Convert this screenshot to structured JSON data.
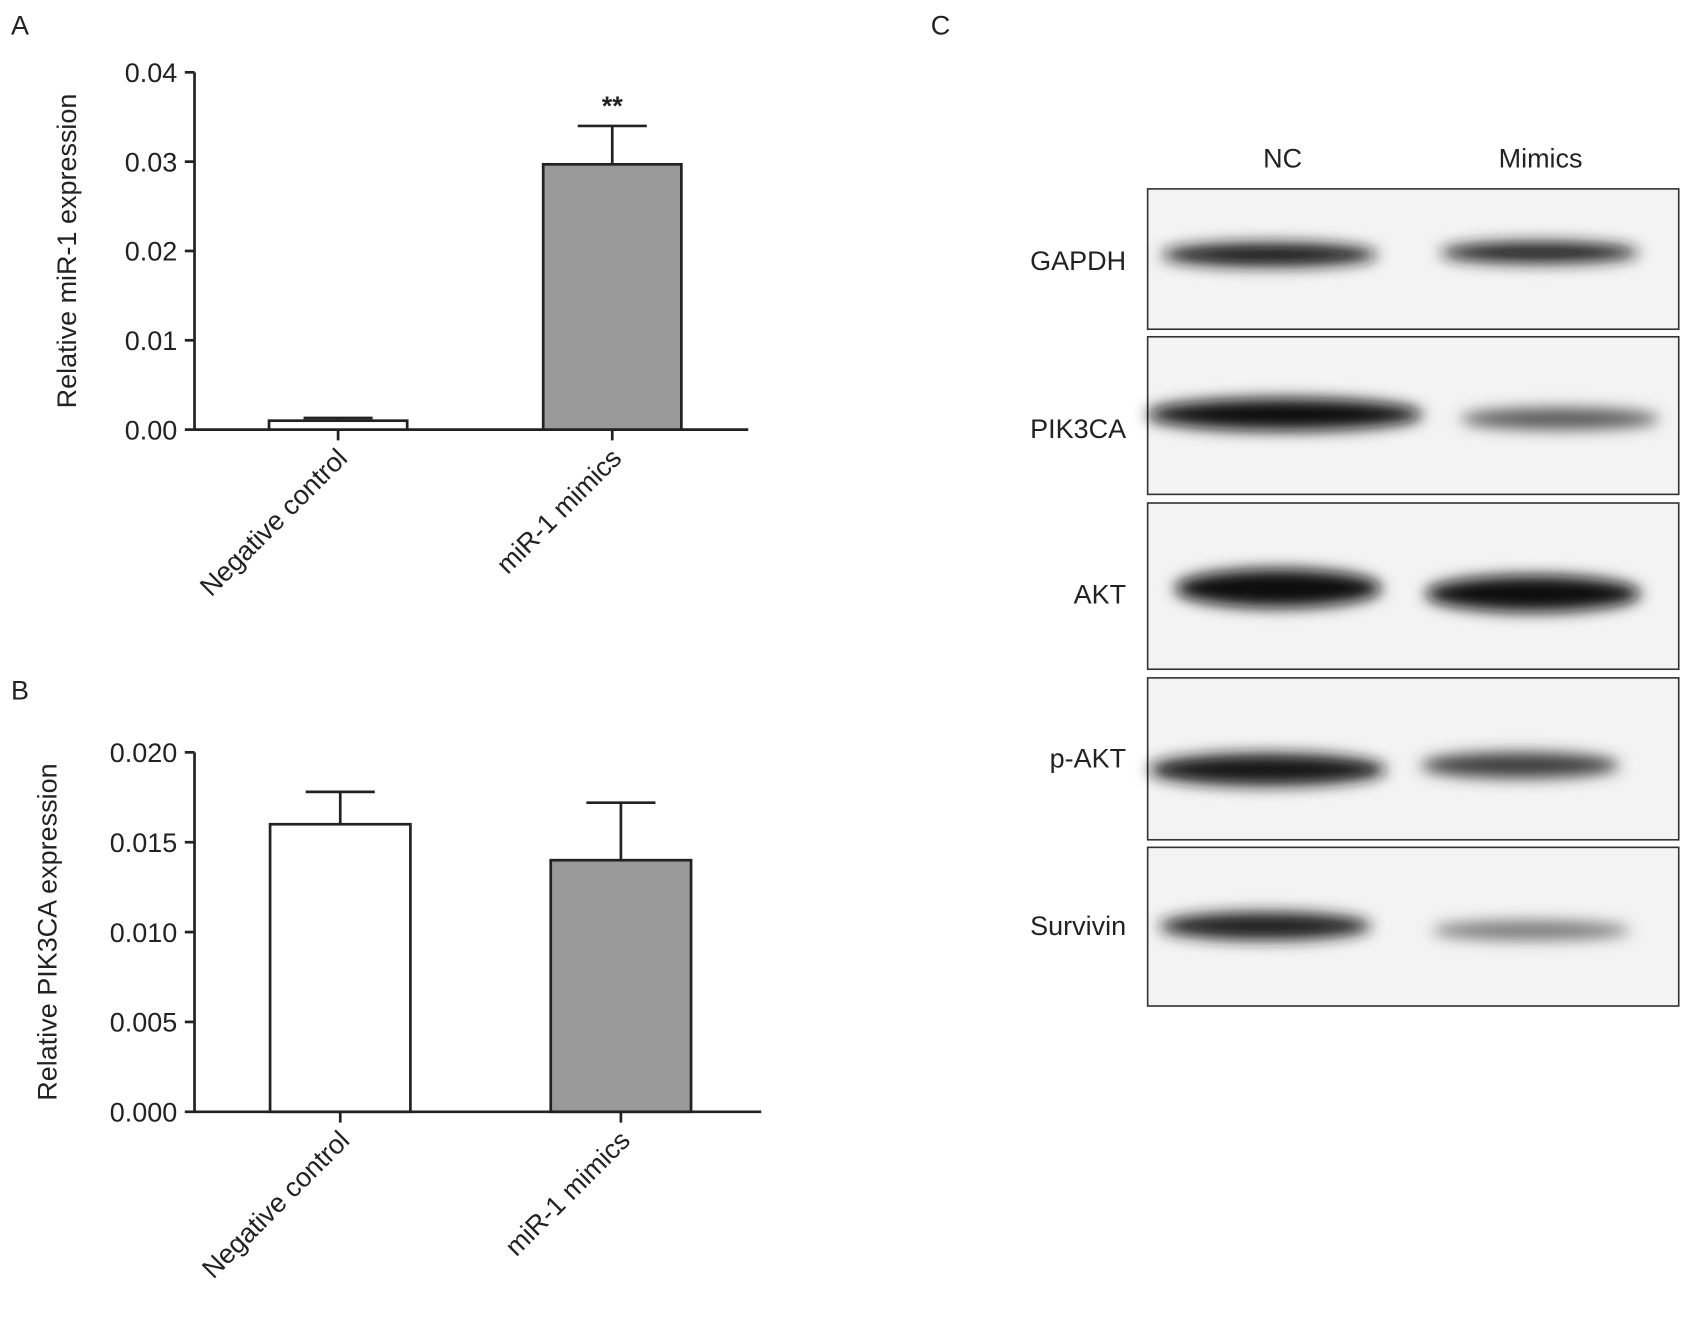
{
  "panels": [
    "A",
    "B",
    "C"
  ],
  "chart_data": [
    {
      "type": "bar",
      "ylabel": "Relative miR-1 expression",
      "categories": [
        "Negative control",
        "miR-1 mimics"
      ],
      "values": [
        0.001,
        0.0297
      ],
      "errors": [
        0.0003,
        0.0043
      ],
      "colors": [
        "#ffffff",
        "#999999"
      ],
      "annotation": "**",
      "ylim": [
        0,
        0.04
      ],
      "yticks": [
        {
          "value": 0,
          "label": "0.00"
        },
        0.01,
        0.02,
        0.03,
        0.04
      ]
    },
    {
      "type": "bar",
      "ylabel": "Relative PIK3CA expression",
      "categories": [
        "Negative control",
        "miR-1 mimics"
      ],
      "values": [
        0.016,
        0.014
      ],
      "errors": [
        0.0018,
        0.0032
      ],
      "colors": [
        "#ffffff",
        "#999999"
      ],
      "ylim": [
        0,
        0.02
      ],
      "yticks": [
        {
          "value": 0,
          "label": "0.000"
        },
        0.005,
        {
          "value": 0.01,
          "label": "0.010"
        },
        0.015,
        {
          "value": 0.02,
          "label": "0.020"
        }
      ]
    }
  ],
  "blot": {
    "columns": [
      "NC",
      "Mimics"
    ],
    "rows": [
      "GAPDH",
      "PIK3CA",
      "AKT",
      "p-AKT",
      "Survivin"
    ]
  }
}
